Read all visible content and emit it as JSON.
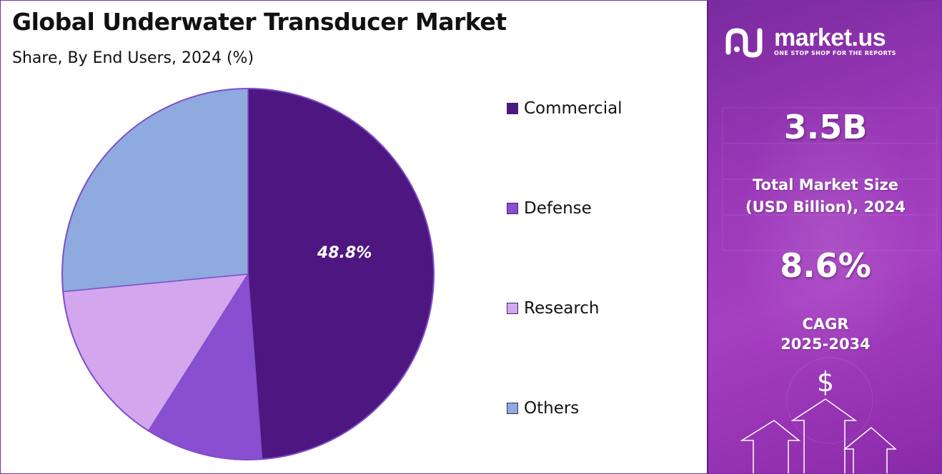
{
  "header": {
    "title": "Global Underwater Transducer Market",
    "subtitle": "Share, By End Users, 2024 (%)"
  },
  "chart_data": {
    "type": "pie",
    "title": "Global Underwater Transducer Market",
    "subtitle": "Share, By End Users, 2024 (%)",
    "categories": [
      "Commercial",
      "Defense",
      "Research",
      "Others"
    ],
    "values": [
      48.8,
      10.2,
      14.5,
      26.5
    ],
    "colors": [
      "#4e1680",
      "#8a4fd0",
      "#d3a6ee",
      "#8eaadf"
    ],
    "data_labels": [
      "48.8%",
      "",
      "",
      ""
    ],
    "legend_position": "right"
  },
  "legend": {
    "items": [
      {
        "label": "Commercial",
        "color": "#4e1680"
      },
      {
        "label": "Defense",
        "color": "#8a4fd0"
      },
      {
        "label": "Research",
        "color": "#d3a6ee"
      },
      {
        "label": "Others",
        "color": "#8eaadf"
      }
    ]
  },
  "side_panel": {
    "brand_name": "market.us",
    "brand_tagline": "ONE STOP SHOP FOR THE REPORTS",
    "market_size_value": "3.5B",
    "market_size_label_line1": "Total Market Size",
    "market_size_label_line2": "(USD Billion), 2024",
    "cagr_value": "8.6%",
    "cagr_label_line1": "CAGR",
    "cagr_label_line2": "2025-2034",
    "dollar_symbol": "$",
    "logo_icon": "market-us-logo-icon",
    "decor_icons": [
      "dollar-icon",
      "up-arrow-icon"
    ]
  }
}
